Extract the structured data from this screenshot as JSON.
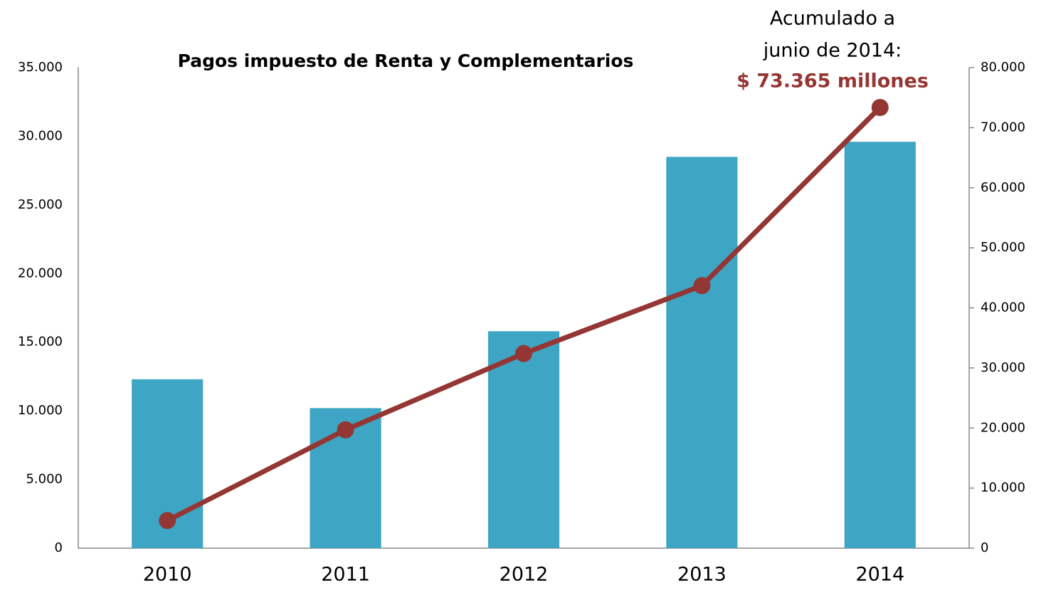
{
  "chart_data": {
    "type": "bar_line",
    "title": "Pagos impuesto de Renta y Complementarios",
    "categories": [
      "2010",
      "2011",
      "2012",
      "2013",
      "2014"
    ],
    "series": [
      {
        "type": "bar",
        "color": "#3ea6c4",
        "values": [
          12300,
          10200,
          15800,
          28500,
          29600
        ]
      },
      {
        "type": "line",
        "axis": "y2",
        "color": "#943634",
        "values": [
          4600,
          19700,
          32400,
          43700,
          73365
        ]
      }
    ],
    "ylim": [
      0,
      35000
    ],
    "yticks": [
      0,
      {
        "value": 5000,
        "label": "5.000"
      },
      {
        "value": 10000,
        "label": "10.000"
      },
      {
        "value": 15000,
        "label": "15.000"
      },
      {
        "value": 20000,
        "label": "20.000"
      },
      {
        "value": 25000,
        "label": "25.000"
      },
      {
        "value": 30000,
        "label": "30.000"
      },
      {
        "value": 35000,
        "label": "35.000"
      }
    ],
    "y2lim": [
      0,
      80000
    ],
    "y2ticks": [
      0,
      {
        "value": 10000,
        "label": "10.000"
      },
      {
        "value": 20000,
        "label": "20.000"
      },
      {
        "value": 30000,
        "label": "30.000"
      },
      {
        "value": 40000,
        "label": "40.000"
      },
      {
        "value": 50000,
        "label": "50.000"
      },
      {
        "value": 60000,
        "label": "60.000"
      },
      {
        "value": 70000,
        "label": "70.000"
      },
      {
        "value": 80000,
        "label": "80.000"
      }
    ],
    "annotation": {
      "lines": [
        "Acumulado a",
        "junio de 2014:"
      ],
      "highlight": "$ 73.365 millones"
    }
  }
}
